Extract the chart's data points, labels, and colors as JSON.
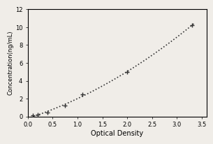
{
  "x_data": [
    0.1,
    0.2,
    0.4,
    0.75,
    1.1,
    2.0,
    3.3
  ],
  "y_data": [
    0.1,
    0.2,
    0.4,
    1.2,
    2.5,
    5.0,
    10.2
  ],
  "xlabel": "Optical Density",
  "ylabel": "Concentration(ng/mL)",
  "xlim": [
    0,
    3.6
  ],
  "ylim": [
    0,
    12
  ],
  "xticks": [
    0,
    0.5,
    1.0,
    1.5,
    2.0,
    2.5,
    3.0,
    3.5
  ],
  "yticks": [
    0,
    2,
    4,
    6,
    8,
    10,
    12
  ],
  "line_color": "#333333",
  "marker_color": "#333333",
  "bg_color": "#f0ede8",
  "plot_bg": "#f0ede8"
}
